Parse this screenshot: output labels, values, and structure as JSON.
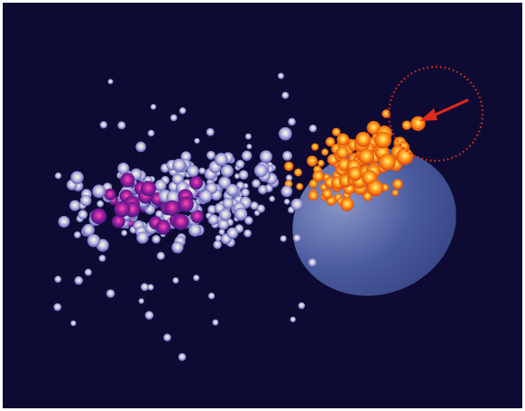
{
  "scene": {
    "background_color": "#0d0b33",
    "frame_color": "#ffffff",
    "blob_color": "#4a5a9e",
    "marker_color": "#e02a1a",
    "arrow_color": "#e02a1a",
    "particle_colors": {
      "pale": [
        "#fffbd0",
        "#c9c6e8",
        "#5a5cb4"
      ],
      "magenta": [
        "#ff4fae",
        "#a01ea0",
        "#3a1a7a"
      ],
      "fire": [
        "#fff27a",
        "#ff9a1a",
        "#e0400a"
      ]
    },
    "icons": [
      "dotted-circle-marker-icon",
      "arrow-icon"
    ]
  }
}
